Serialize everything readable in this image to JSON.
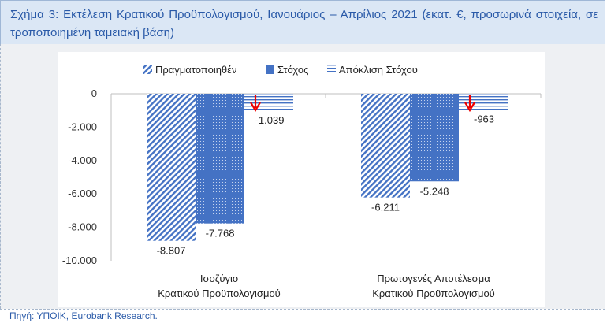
{
  "header": {
    "title": "Σχήμα 3: Εκτέλεση Κρατικού Προϋπολογισμού, Ιανουάριος – Απρίλιος 2021 (εκατ. €, προσωρινά στοιχεία, σε τροποποιημένη ταμειακή βάση)"
  },
  "footer": {
    "source": "Πηγή: ΥΠΟΙΚ, Eurobank Research."
  },
  "colors": {
    "blue": "#4472c4",
    "arrow": "#ee0000",
    "title_text": "#2a5aa8"
  },
  "chart_data": {
    "type": "bar",
    "categories": [
      [
        "Ισοζύγιο",
        "Κρατικού Προϋπολογισμού"
      ],
      [
        "Πρωτογενές Αποτέλεσμα",
        "Κρατικού Προϋπολογισμού"
      ]
    ],
    "series": [
      {
        "name": "Πραγματοποιηθέν",
        "values": [
          -8807,
          -6211
        ],
        "labels": [
          "-8.807",
          "-6.211"
        ],
        "pattern": "diagonal-stripes"
      },
      {
        "name": "Στόχος",
        "values": [
          -7768,
          -5248
        ],
        "labels": [
          "-7.768",
          "-5.248"
        ],
        "pattern": "dotted-solid"
      },
      {
        "name": "Απόκλιση Στόχου",
        "values": [
          -1039,
          -963
        ],
        "labels": [
          "-1.039",
          "-963"
        ],
        "pattern": "horizontal-lines"
      }
    ],
    "ylim": [
      -10000,
      0
    ],
    "yticks": [
      0,
      -2000,
      -4000,
      -6000,
      -8000,
      -10000
    ],
    "ytick_labels": [
      "0",
      "-2.000",
      "-4.000",
      "-6.000",
      "-8.000",
      "-10.000"
    ],
    "legend_position": "top",
    "grid": false,
    "annotations": [
      "red down arrow next to Απόκλιση Στόχου bar in each group"
    ]
  }
}
